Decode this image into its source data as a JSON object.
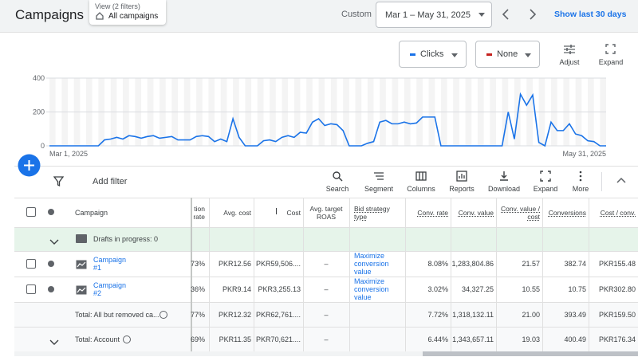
{
  "header": {
    "title": "Campaigns",
    "view_label": "View (2 filters)",
    "view_value": "All campaigns",
    "range_label": "Custom",
    "date_range": "Mar 1 – May 31, 2025",
    "show_last": "Show last 30 days"
  },
  "chart_controls": {
    "metric1": "Clicks",
    "metric2": "None",
    "adjust": "Adjust",
    "expand": "Expand"
  },
  "chart_data": {
    "type": "line",
    "categories": [
      "Mar 1, 2025",
      null,
      null,
      null,
      null,
      null,
      null,
      null,
      null,
      null,
      null,
      null,
      null,
      null,
      null,
      null,
      null,
      null,
      null,
      null,
      null,
      null,
      null,
      null,
      null,
      null,
      null,
      null,
      null,
      null,
      null,
      null,
      null,
      null,
      null,
      null,
      null,
      null,
      null,
      null,
      null,
      null,
      null,
      null,
      null,
      null,
      null,
      null,
      null,
      null,
      null,
      null,
      null,
      null,
      null,
      null,
      null,
      null,
      null,
      null,
      null,
      null,
      null,
      null,
      null,
      null,
      null,
      null,
      null,
      null,
      null,
      null,
      null,
      null,
      null,
      null,
      null,
      null,
      null,
      null,
      null,
      null,
      null,
      null,
      null,
      null,
      null,
      null,
      null,
      null,
      null,
      "May 31, 2025"
    ],
    "series": [
      {
        "name": "Clicks",
        "color": "#1a73e8",
        "values": [
          0,
          0,
          0,
          0,
          0,
          0,
          0,
          0,
          0,
          35,
          40,
          50,
          40,
          60,
          55,
          45,
          55,
          60,
          45,
          50,
          55,
          35,
          35,
          35,
          55,
          60,
          55,
          25,
          40,
          25,
          160,
          50,
          0,
          0,
          0,
          30,
          35,
          25,
          50,
          60,
          50,
          80,
          75,
          140,
          160,
          120,
          130,
          125,
          90,
          0,
          0,
          0,
          15,
          25,
          140,
          150,
          130,
          130,
          140,
          130,
          135,
          170,
          170,
          170,
          0,
          0,
          0,
          0,
          0,
          0,
          0,
          0,
          0,
          0,
          0,
          200,
          40,
          305,
          240,
          300,
          20,
          0,
          140,
          90,
          90,
          130,
          70,
          60,
          30,
          25,
          0,
          0
        ]
      }
    ],
    "ylim": [
      0,
      400
    ],
    "yticks": [
      0,
      200,
      400
    ],
    "grid": true
  },
  "toolbar": {
    "add_filter": "Add filter",
    "buttons": [
      "Search",
      "Segment",
      "Columns",
      "Reports",
      "Download",
      "Expand",
      "More"
    ]
  },
  "table": {
    "columns": [
      "Campaign",
      "tion rate",
      "Avg. cost",
      "Cost",
      "Avg. target ROAS",
      "Bid strategy type",
      "Conv. rate",
      "Conv. value",
      "Conv. value / cost",
      "Conversions",
      "Cost / conv."
    ],
    "draft_row": "Drafts in progress: 0",
    "rows": [
      [
        "Campaign #1",
        "73%",
        "PKR12.56",
        "PKR59,506....",
        "–",
        "Maximize conversion value",
        "8.08%",
        "1,283,804.86",
        "21.57",
        "382.74",
        "PKR155.48"
      ],
      [
        "Campaign #2",
        "36%",
        "PKR9.14",
        "PKR3,255.13",
        "–",
        "Maximize conversion value",
        "3.02%",
        "34,327.25",
        "10.55",
        "10.75",
        "PKR302.80"
      ],
      [
        "Total: All but removed ca...",
        "77%",
        "PKR12.32",
        "PKR62,761....",
        "–",
        null,
        "7.72%",
        "1,318,132.11",
        "21.00",
        "393.49",
        "PKR159.50"
      ],
      [
        "Total: Account",
        "69%",
        "PKR11.35",
        "PKR70,621....",
        "–",
        null,
        "6.44%",
        "1,343,657.11",
        "19.03",
        "400.49",
        "PKR176.34"
      ]
    ]
  }
}
